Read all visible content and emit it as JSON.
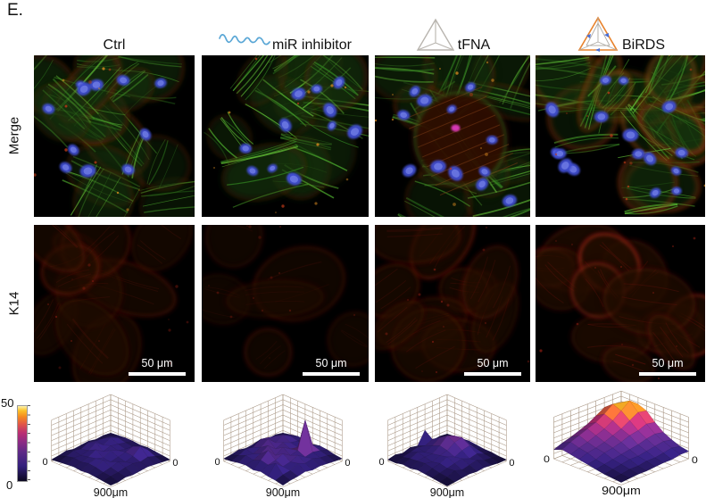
{
  "panel_label": "E.",
  "columns": [
    {
      "label": "Ctrl",
      "icon": "none"
    },
    {
      "label": "miR inhibitor",
      "icon": "rna-squiggle-icon"
    },
    {
      "label": "tFNA",
      "icon": "tetrahedron-outline-icon"
    },
    {
      "label": "BiRDS",
      "icon": "birds-tetrahedron-icon"
    }
  ],
  "rows": [
    {
      "label": "Merge"
    },
    {
      "label": "K14"
    }
  ],
  "scale_bar": {
    "label": "50 μm"
  },
  "colorbar": {
    "max": "50",
    "min": "0",
    "stops": [
      [
        0,
        "#0b0820"
      ],
      [
        0.2,
        "#33207c"
      ],
      [
        0.38,
        "#5c2a86"
      ],
      [
        0.52,
        "#8c2b84"
      ],
      [
        0.64,
        "#b92e73"
      ],
      [
        0.76,
        "#e25746"
      ],
      [
        0.86,
        "#f58b1f"
      ],
      [
        0.94,
        "#fbc229"
      ],
      [
        1,
        "#fdf3b0"
      ]
    ]
  },
  "icon_colors": {
    "rna": "#5aa7d6",
    "tfna": "#b8b4ae",
    "birds_edge": "#e8832d",
    "birds_inner": "#b0aca6",
    "birds_arrow": "#4a6fd4"
  },
  "microscopy": {
    "merge": [
      {
        "condition": "Ctrl",
        "seed": 11,
        "cells": 13,
        "nuclei": 11,
        "green": 0.7,
        "red": 0.4,
        "orange": false,
        "brown_center": false
      },
      {
        "condition": "miR inhibitor",
        "seed": 22,
        "cells": 11,
        "nuclei": 12,
        "green": 0.95,
        "red": 0.2,
        "orange": false,
        "brown_center": false
      },
      {
        "condition": "tFNA",
        "seed": 33,
        "cells": 12,
        "nuclei": 12,
        "green": 0.6,
        "red": 0.55,
        "orange": false,
        "brown_center": true
      },
      {
        "condition": "BiRDS",
        "seed": 44,
        "cells": 17,
        "nuclei": 16,
        "green": 0.85,
        "red": 0.8,
        "orange": true,
        "brown_center": false
      }
    ],
    "k14": [
      {
        "condition": "Ctrl",
        "seed": 55,
        "cells": 10,
        "intensity": 0.45
      },
      {
        "condition": "miR inhibitor",
        "seed": 66,
        "cells": 6,
        "intensity": 0.18
      },
      {
        "condition": "tFNA",
        "seed": 77,
        "cells": 11,
        "intensity": 0.55
      },
      {
        "condition": "BiRDS",
        "seed": 88,
        "cells": 12,
        "intensity": 0.85
      }
    ]
  },
  "chart_data": [
    {
      "type": "surface",
      "condition": "Ctrl",
      "xlabel": "900μm",
      "left_tick": "0",
      "right_tick": "0",
      "zlim": [
        0,
        50
      ],
      "heights": [
        [
          3,
          4,
          5,
          5,
          4,
          5,
          4,
          3,
          2
        ],
        [
          4,
          7,
          9,
          7,
          6,
          8,
          10,
          6,
          3
        ],
        [
          3,
          8,
          13,
          9,
          7,
          14,
          18,
          9,
          4
        ],
        [
          5,
          9,
          8,
          11,
          9,
          11,
          10,
          7,
          5
        ],
        [
          4,
          11,
          15,
          8,
          13,
          9,
          7,
          9,
          4
        ],
        [
          3,
          7,
          9,
          14,
          8,
          7,
          11,
          8,
          3
        ],
        [
          5,
          9,
          7,
          9,
          11,
          13,
          8,
          6,
          4
        ],
        [
          3,
          6,
          8,
          7,
          9,
          8,
          6,
          5,
          2
        ],
        [
          2,
          3,
          4,
          5,
          4,
          5,
          4,
          3,
          2
        ]
      ]
    },
    {
      "type": "surface",
      "condition": "miR inhibitor",
      "xlabel": "900μm",
      "left_tick": "0",
      "right_tick": "0",
      "zlim": [
        0,
        50
      ],
      "heights": [
        [
          3,
          5,
          7,
          6,
          5,
          7,
          6,
          4,
          3
        ],
        [
          5,
          9,
          11,
          9,
          8,
          12,
          9,
          7,
          4
        ],
        [
          4,
          11,
          16,
          11,
          9,
          46,
          11,
          8,
          5
        ],
        [
          6,
          13,
          11,
          15,
          11,
          13,
          9,
          11,
          6
        ],
        [
          5,
          15,
          19,
          11,
          17,
          11,
          15,
          9,
          5
        ],
        [
          4,
          9,
          13,
          19,
          11,
          17,
          11,
          13,
          7
        ],
        [
          6,
          11,
          9,
          13,
          21,
          13,
          9,
          8,
          5
        ],
        [
          4,
          7,
          11,
          9,
          13,
          11,
          17,
          7,
          4
        ],
        [
          3,
          4,
          6,
          7,
          5,
          7,
          5,
          4,
          2
        ]
      ]
    },
    {
      "type": "surface",
      "condition": "tFNA",
      "xlabel": "900μm",
      "left_tick": "0",
      "right_tick": "0",
      "zlim": [
        0,
        50
      ],
      "heights": [
        [
          2,
          3,
          4,
          5,
          4,
          3,
          3,
          2,
          2
        ],
        [
          3,
          7,
          9,
          11,
          9,
          7,
          5,
          4,
          2
        ],
        [
          2,
          9,
          15,
          19,
          21,
          15,
          9,
          5,
          3
        ],
        [
          18,
          11,
          17,
          23,
          19,
          13,
          7,
          9,
          4
        ],
        [
          3,
          7,
          11,
          15,
          13,
          9,
          11,
          7,
          3
        ],
        [
          5,
          9,
          7,
          9,
          11,
          13,
          9,
          5,
          4
        ],
        [
          2,
          7,
          11,
          9,
          7,
          9,
          7,
          8,
          3
        ],
        [
          4,
          5,
          7,
          8,
          9,
          7,
          5,
          4,
          2
        ],
        [
          2,
          2,
          4,
          3,
          5,
          4,
          3,
          2,
          1
        ]
      ]
    },
    {
      "type": "surface",
      "condition": "BiRDS",
      "xlabel": "900μm",
      "left_tick": "0",
      "right_tick": "0",
      "zlim": [
        0,
        50
      ],
      "heights": [
        [
          28,
          36,
          42,
          38,
          28,
          20,
          15,
          11,
          9
        ],
        [
          34,
          44,
          50,
          40,
          30,
          22,
          17,
          13,
          9
        ],
        [
          38,
          46,
          42,
          34,
          26,
          20,
          15,
          11,
          7
        ],
        [
          32,
          38,
          34,
          28,
          24,
          17,
          13,
          9,
          7
        ],
        [
          26,
          32,
          28,
          24,
          20,
          15,
          11,
          9,
          6
        ],
        [
          22,
          28,
          24,
          20,
          17,
          13,
          11,
          7,
          5
        ],
        [
          18,
          24,
          20,
          17,
          15,
          11,
          9,
          7,
          5
        ],
        [
          15,
          20,
          17,
          15,
          11,
          9,
          7,
          5,
          4
        ],
        [
          11,
          15,
          13,
          11,
          9,
          7,
          5,
          4,
          3
        ]
      ]
    }
  ]
}
